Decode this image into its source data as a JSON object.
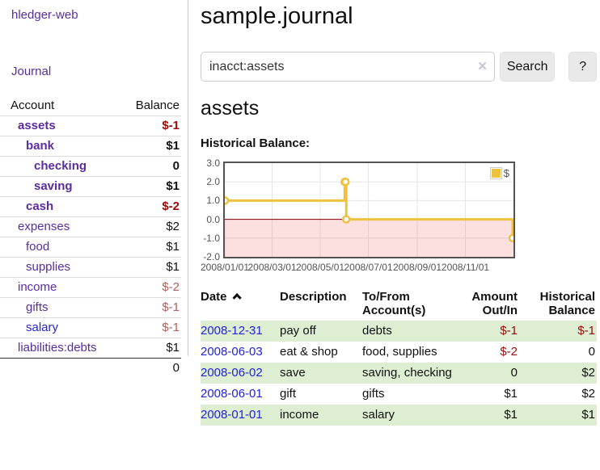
{
  "app": {
    "brand": "hledger-web"
  },
  "sidebar": {
    "nav_journal": "Journal",
    "accounts_table": {
      "headers": {
        "account": "Account",
        "balance": "Balance"
      },
      "rows": [
        {
          "name": "assets",
          "depth": 1,
          "bold": true,
          "balance": "$-1",
          "balance_style": "neg-strong",
          "link_color": "purple"
        },
        {
          "name": "bank",
          "depth": 2,
          "bold": true,
          "balance": "$1",
          "balance_style": "pos",
          "link_color": "purple"
        },
        {
          "name": "checking",
          "depth": 3,
          "bold": true,
          "balance": "0",
          "balance_style": "pos",
          "link_color": "purple"
        },
        {
          "name": "saving",
          "depth": 3,
          "bold": true,
          "balance": "$1",
          "balance_style": "pos",
          "link_color": "purple"
        },
        {
          "name": "cash",
          "depth": 2,
          "bold": true,
          "balance": "$-2",
          "balance_style": "neg-strong",
          "link_color": "purple"
        },
        {
          "name": "expenses",
          "depth": 1,
          "bold": false,
          "balance": "$2",
          "balance_style": "pos",
          "link_color": "purple"
        },
        {
          "name": "food",
          "depth": 2,
          "bold": false,
          "balance": "$1",
          "balance_style": "pos",
          "link_color": "purple"
        },
        {
          "name": "supplies",
          "depth": 2,
          "bold": false,
          "balance": "$1",
          "balance_style": "pos",
          "link_color": "purple"
        },
        {
          "name": "income",
          "depth": 1,
          "bold": false,
          "balance": "$-2",
          "balance_style": "neg-muted",
          "link_color": "purple"
        },
        {
          "name": "gifts",
          "depth": 2,
          "bold": false,
          "balance": "$-1",
          "balance_style": "neg-muted",
          "link_color": "purple"
        },
        {
          "name": "salary",
          "depth": 2,
          "bold": false,
          "balance": "$-1",
          "balance_style": "neg-muted",
          "link_color": "blue"
        },
        {
          "name": "liabilities:debts",
          "depth": 1,
          "bold": false,
          "balance": "$1",
          "balance_style": "pos",
          "link_color": "purple"
        }
      ],
      "total": "0"
    }
  },
  "main": {
    "title": "sample.journal",
    "search": {
      "value": "inacct:assets",
      "clear_icon": "✕",
      "button_label": "Search",
      "help_label": "?"
    },
    "section_heading": "assets",
    "chart_label": "Historical Balance:"
  },
  "chart_data": {
    "type": "line",
    "title": "Historical Balance",
    "step": true,
    "series": [
      {
        "name": "$",
        "color": "#EDC240",
        "points": [
          [
            "2008-01-01",
            1
          ],
          [
            "2008-06-01",
            2
          ],
          [
            "2008-06-02",
            2
          ],
          [
            "2008-06-03",
            0
          ],
          [
            "2008-12-31",
            -1
          ]
        ]
      }
    ],
    "xlim": [
      "2008-01-01",
      "2008-12-31"
    ],
    "ylim": [
      -2.0,
      3.0
    ],
    "x_ticks": [
      "2008/01/01",
      "2008/03/01",
      "2008/05/01",
      "2008/07/01",
      "2008/09/01",
      "2008/11/01"
    ],
    "y_ticks": [
      "3.0",
      "2.0",
      "1.0",
      "0.0",
      "-1.0",
      "-2.0"
    ],
    "grid": true,
    "legend_position": "top-right",
    "legend_label": "$",
    "below_zero_fill": "#f9d9d9",
    "zero_line_color": "#8b0000",
    "grid_color": "#e6e6e6",
    "border_color": "#545454"
  },
  "register_table": {
    "headers": {
      "date": "Date",
      "description": "Description",
      "accounts": "To/From Account(s)",
      "amount": "Amount Out/In",
      "balance": "Historical Balance"
    },
    "sort": {
      "column": "date",
      "direction": "asc"
    },
    "rows": [
      {
        "date": "2008-12-31",
        "description": "pay off",
        "accounts": "debts",
        "amount": "$-1",
        "amount_neg": true,
        "balance": "$-1",
        "balance_neg": true,
        "shaded": true
      },
      {
        "date": "2008-06-03",
        "description": "eat & shop",
        "accounts": "food, supplies",
        "amount": "$-2",
        "amount_neg": true,
        "balance": "0",
        "balance_neg": false,
        "shaded": false
      },
      {
        "date": "2008-06-02",
        "description": "save",
        "accounts": "saving, checking",
        "amount": "0",
        "amount_neg": false,
        "balance": "$2",
        "balance_neg": false,
        "shaded": true
      },
      {
        "date": "2008-06-01",
        "description": "gift",
        "accounts": "gifts",
        "amount": "$1",
        "amount_neg": false,
        "balance": "$2",
        "balance_neg": false,
        "shaded": false
      },
      {
        "date": "2008-01-01",
        "description": "income",
        "accounts": "salary",
        "amount": "$1",
        "amount_neg": false,
        "balance": "$1",
        "balance_neg": false,
        "shaded": true
      }
    ]
  },
  "colors": {
    "link_purple": "#5a2ca0",
    "link_blue": "#2222e0",
    "neg_strong": "#990b0b",
    "neg_muted": "#b06060",
    "row_shade_green": "#ddeed2",
    "series_yellow": "#EDC240"
  }
}
